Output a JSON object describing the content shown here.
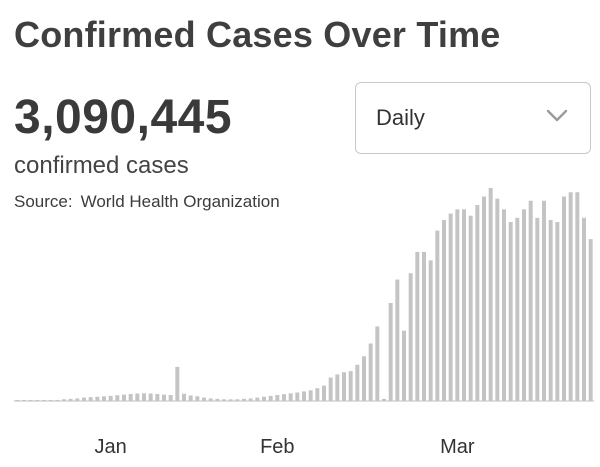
{
  "header": {
    "title": "Confirmed Cases Over Time",
    "total": "3,090,445",
    "total_label": "confirmed cases",
    "source_prefix": "Source:",
    "source_name": "World Health Organization"
  },
  "range_select": {
    "value": "Daily",
    "icon": "chevron-down-icon"
  },
  "colors": {
    "bar": "#c4c4c4",
    "spike_bar": "#b8b8b8",
    "baseline": "#d6d6d6"
  },
  "chart_data": {
    "type": "bar",
    "title": "Confirmed Cases Over Time",
    "xlabel": "",
    "ylabel": "",
    "x_tick_labels": [
      "Jan",
      "Feb",
      "Mar"
    ],
    "grid": false,
    "ylim": [
      0,
      1
    ],
    "values": [
      0.005,
      0.005,
      0.005,
      0.005,
      0.005,
      0.005,
      0.005,
      0.008,
      0.01,
      0.012,
      0.016,
      0.018,
      0.02,
      0.022,
      0.024,
      0.027,
      0.03,
      0.033,
      0.035,
      0.036,
      0.035,
      0.033,
      0.03,
      0.028,
      0.16,
      0.034,
      0.026,
      0.022,
      0.016,
      0.012,
      0.01,
      0.008,
      0.008,
      0.008,
      0.01,
      0.012,
      0.016,
      0.02,
      0.024,
      0.028,
      0.032,
      0.036,
      0.04,
      0.045,
      0.05,
      0.06,
      0.072,
      0.11,
      0.125,
      0.135,
      0.14,
      0.17,
      0.21,
      0.27,
      0.35,
      0.01,
      0.46,
      0.57,
      0.33,
      0.6,
      0.7,
      0.7,
      0.66,
      0.8,
      0.85,
      0.88,
      0.9,
      0.9,
      0.87,
      0.92,
      0.96,
      1.0,
      0.95,
      0.9,
      0.84,
      0.86,
      0.9,
      0.94,
      0.86,
      0.94,
      0.85,
      0.84,
      0.96,
      0.98,
      0.98,
      0.86,
      0.76
    ]
  }
}
